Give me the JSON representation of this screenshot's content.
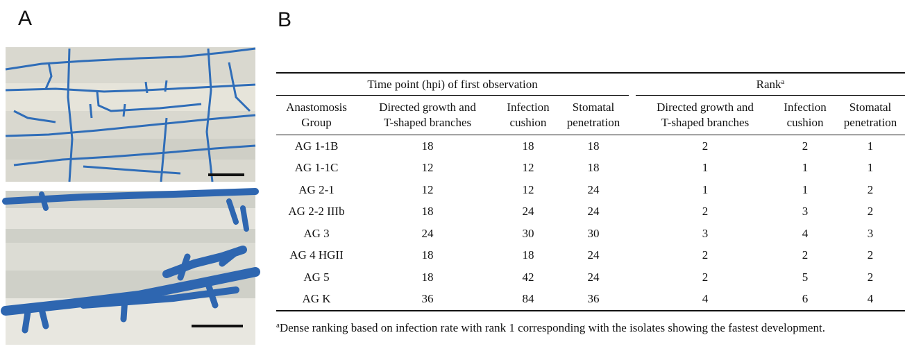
{
  "panels": {
    "a": {
      "label": "A"
    },
    "b": {
      "label": "B"
    }
  },
  "table": {
    "group_headers": [
      "Time point (hpi) of first observation",
      "Rank"
    ],
    "rank_marker": "a",
    "columns": [
      [
        "Anastomosis",
        "Group"
      ],
      [
        "Directed growth and",
        "T-shaped branches"
      ],
      [
        "Infection",
        "cushion"
      ],
      [
        "Stomatal",
        "penetration"
      ],
      [
        "Directed growth and",
        "T-shaped branches"
      ],
      [
        "Infection",
        "cushion"
      ],
      [
        "Stomatal",
        "penetration"
      ]
    ],
    "rows": [
      [
        "AG 1-1B",
        18,
        18,
        18,
        2,
        2,
        1
      ],
      [
        "AG 1-1C",
        12,
        12,
        18,
        1,
        1,
        1
      ],
      [
        "AG 2-1",
        12,
        12,
        24,
        1,
        1,
        2
      ],
      [
        "AG 2-2 IIIb",
        18,
        24,
        24,
        2,
        3,
        2
      ],
      [
        "AG 3",
        24,
        30,
        30,
        3,
        4,
        3
      ],
      [
        "AG 4 HGII",
        18,
        18,
        24,
        2,
        2,
        2
      ],
      [
        "AG 5",
        18,
        42,
        24,
        2,
        5,
        2
      ],
      [
        "AG K",
        36,
        84,
        36,
        4,
        6,
        4
      ]
    ]
  },
  "footnote": {
    "marker": "a",
    "text": "Dense ranking based on infection rate with rank 1 corresponding with the isolates showing the fastest development."
  }
}
